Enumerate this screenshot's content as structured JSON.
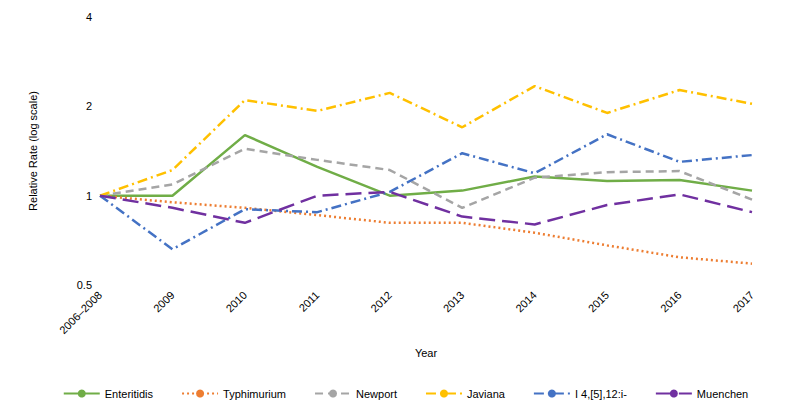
{
  "chart_data": {
    "type": "line",
    "x_label": "Year",
    "y_label": "Relative Rate (log scale)",
    "categories": [
      "2006–2008",
      "2009",
      "2010",
      "2011",
      "2012",
      "2013",
      "2014",
      "2015",
      "2016",
      "2017"
    ],
    "log": "y",
    "ylim": [
      0.5,
      4
    ],
    "yticks": [
      0.5,
      1,
      2,
      4
    ],
    "grid": false,
    "legend": "bottom",
    "series": [
      {
        "name": "Enteritidis",
        "color": "#70AD47",
        "line_style": "solid",
        "values": [
          1.0,
          1.0,
          1.6,
          1.25,
          1.0,
          1.04,
          1.16,
          1.12,
          1.13,
          1.04
        ]
      },
      {
        "name": "Typhimurium",
        "color": "#ED7D31",
        "line_style": "dotted",
        "values": [
          1.0,
          0.95,
          0.91,
          0.86,
          0.81,
          0.81,
          0.75,
          0.68,
          0.62,
          0.59
        ]
      },
      {
        "name": "Newport",
        "color": "#A5A5A5",
        "line_style": "dashed",
        "values": [
          1.0,
          1.09,
          1.44,
          1.32,
          1.22,
          0.91,
          1.15,
          1.2,
          1.21,
          0.97
        ]
      },
      {
        "name": "Javiana",
        "color": "#FFC000",
        "line_style": "dash_dot",
        "values": [
          1.0,
          1.22,
          2.1,
          1.93,
          2.22,
          1.7,
          2.34,
          1.9,
          2.27,
          2.04
        ]
      },
      {
        "name": "I 4,[5],12:i-",
        "color": "#4472C4",
        "line_style": "dash_dot",
        "values": [
          1.0,
          0.66,
          0.9,
          0.88,
          1.03,
          1.39,
          1.19,
          1.61,
          1.3,
          1.37
        ]
      },
      {
        "name": "Muenchen",
        "color": "#7030A0",
        "line_style": "long_dash",
        "values": [
          1.0,
          0.91,
          0.81,
          1.0,
          1.03,
          0.85,
          0.8,
          0.93,
          1.01,
          0.88
        ]
      }
    ]
  }
}
